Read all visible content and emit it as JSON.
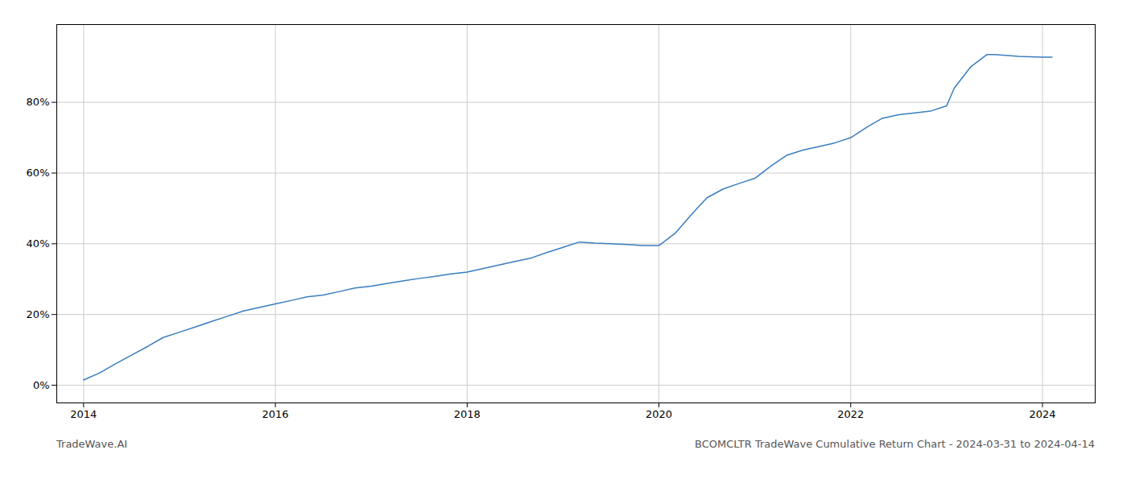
{
  "chart_data": {
    "type": "line",
    "title": "BCOMCLTR TradeWave Cumulative Return Chart - 2024-03-31 to 2024-04-14",
    "caption": "TradeWave.AI",
    "color": "#3a7ebf",
    "x": [
      2014.0,
      2014.17,
      2014.33,
      2014.5,
      2014.67,
      2014.83,
      2015.0,
      2015.17,
      2015.33,
      2015.5,
      2015.67,
      2015.83,
      2016.0,
      2016.17,
      2016.33,
      2016.5,
      2016.67,
      2016.83,
      2017.0,
      2017.17,
      2017.33,
      2017.5,
      2017.67,
      2017.83,
      2018.0,
      2018.17,
      2018.33,
      2018.5,
      2018.67,
      2018.83,
      2019.0,
      2019.17,
      2019.33,
      2019.5,
      2019.67,
      2019.83,
      2020.0,
      2020.17,
      2020.33,
      2020.5,
      2020.67,
      2020.83,
      2021.0,
      2021.17,
      2021.33,
      2021.5,
      2021.67,
      2021.83,
      2022.0,
      2022.17,
      2022.33,
      2022.5,
      2022.67,
      2022.83,
      2023.0,
      2023.08,
      2023.25,
      2023.42,
      2023.5,
      2023.75,
      2024.0,
      2024.1
    ],
    "values": [
      1.5,
      3.5,
      6.0,
      8.5,
      11.0,
      13.5,
      15.0,
      16.5,
      18.0,
      19.5,
      21.0,
      22.0,
      23.0,
      24.0,
      25.0,
      25.5,
      26.5,
      27.5,
      28.0,
      28.8,
      29.5,
      30.2,
      30.8,
      31.5,
      32.0,
      33.0,
      34.0,
      35.0,
      36.0,
      37.5,
      39.0,
      40.5,
      40.2,
      40.0,
      39.8,
      39.5,
      39.5,
      43.0,
      48.0,
      53.0,
      55.5,
      57.0,
      58.5,
      62.0,
      65.0,
      66.5,
      67.5,
      68.5,
      70.0,
      73.0,
      75.5,
      76.5,
      77.0,
      77.5,
      79.0,
      84.0,
      90.0,
      93.5,
      93.5,
      93.0,
      92.8,
      92.8
    ],
    "xlim": [
      2013.72,
      2024.55
    ],
    "xticks": [
      2014,
      2016,
      2018,
      2020,
      2022,
      2024
    ],
    "ylim": [
      -5,
      102
    ],
    "yticks": [
      {
        "value": 0,
        "label": "0%"
      },
      {
        "value": 20,
        "label": "20%"
      },
      {
        "value": 40,
        "label": "40%"
      },
      {
        "value": 60,
        "label": "60%"
      },
      {
        "value": 80,
        "label": "80%"
      }
    ],
    "grid": true
  }
}
